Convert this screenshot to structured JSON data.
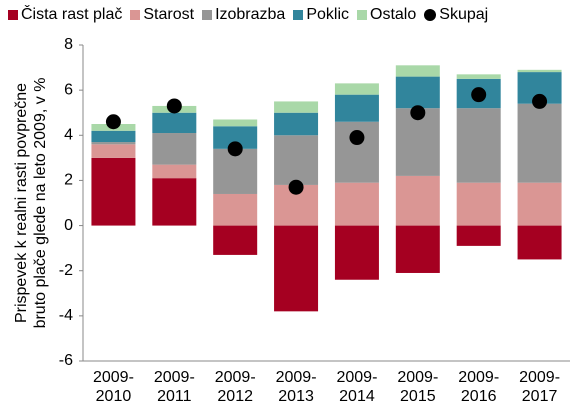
{
  "chart_data": {
    "type": "bar",
    "stacked": true,
    "y_label": [
      "Prispevek k realni rasti povprečne",
      "bruto plače glede na leto 2009, v %"
    ],
    "categories": [
      "2009-2010",
      "2009-2011",
      "2009-2012",
      "2009-2013",
      "2009-2014",
      "2009-2015",
      "2009-2016",
      "2009-2017"
    ],
    "series": [
      {
        "name": "Čista rast plač",
        "color": "#a50021",
        "values": [
          3.0,
          2.1,
          -1.3,
          -3.8,
          -2.4,
          -2.1,
          -0.9,
          -1.5
        ]
      },
      {
        "name": "Starost",
        "color": "#da9694",
        "values": [
          0.6,
          0.6,
          1.4,
          1.8,
          1.9,
          2.2,
          1.9,
          1.9
        ]
      },
      {
        "name": "Izobrazba",
        "color": "#969696",
        "values": [
          0.1,
          1.4,
          2.0,
          2.2,
          2.7,
          3.0,
          3.3,
          3.5
        ]
      },
      {
        "name": "Poklic",
        "color": "#31859c",
        "values": [
          0.5,
          0.9,
          1.0,
          1.0,
          1.2,
          1.4,
          1.3,
          1.4
        ]
      },
      {
        "name": "Ostalo",
        "color": "#a9d8a8",
        "values": [
          0.3,
          0.3,
          0.3,
          0.5,
          0.5,
          0.5,
          0.2,
          0.1
        ]
      },
      {
        "name": "Skupaj",
        "type": "scatter",
        "color": "#000000",
        "values": [
          4.6,
          5.3,
          3.4,
          1.7,
          3.9,
          5.0,
          5.8,
          5.5
        ]
      }
    ],
    "ylim": [
      -6,
      8
    ],
    "yticks": [
      -6,
      -4,
      -2,
      0,
      2,
      4,
      6,
      8
    ],
    "legend": "top"
  }
}
